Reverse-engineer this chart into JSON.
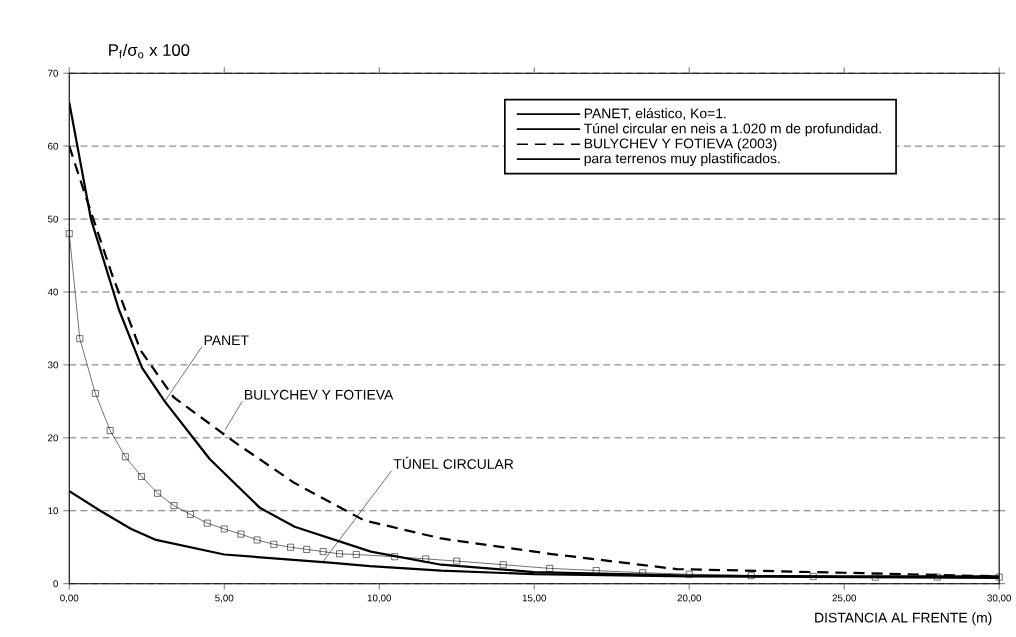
{
  "chart_data": {
    "type": "line",
    "xlabel": "DISTANCIA AL FRENTE (m)",
    "ylabel": "P$_{f}$/σ$_{o}$ x 100",
    "xlim": [
      0,
      30
    ],
    "ylim": [
      0,
      70
    ],
    "xticks": [
      {
        "value": 0,
        "label": "0,00"
      },
      {
        "value": 5,
        "label": "5,00"
      },
      {
        "value": 10,
        "label": "10,00"
      },
      {
        "value": 15,
        "label": "15,00"
      },
      {
        "value": 20,
        "label": "20,00"
      },
      {
        "value": 25,
        "label": "25,00"
      },
      {
        "value": 30,
        "label": "30,00"
      }
    ],
    "yticks": [
      0,
      10,
      20,
      30,
      40,
      50,
      60,
      70
    ],
    "grid": "y",
    "legend": "top right",
    "series": [
      {
        "name": "PANET, elástico, Ko=1.",
        "color": "#000000",
        "line_style": "solid",
        "x": [
          0,
          0.7,
          1.6,
          2.35,
          3.08,
          4.53,
          6.15,
          7.27,
          9.73,
          12,
          15,
          20,
          25,
          30
        ],
        "values": [
          66,
          50,
          37.6,
          29.6,
          25.0,
          17.1,
          10.4,
          7.8,
          4.4,
          2.6,
          1.6,
          1.1,
          1.0,
          1.0
        ]
      },
      {
        "name": "Túnel circular en neis a 1.020 m de profundidad.",
        "color": "#000000",
        "line_style": "solid",
        "x": [
          0,
          1,
          2,
          2.8,
          5,
          8.4,
          9.7,
          12,
          15,
          20,
          30
        ],
        "values": [
          12.7,
          10,
          7.5,
          6.0,
          4.0,
          2.9,
          2.4,
          1.8,
          1.3,
          1.0,
          0.8
        ]
      },
      {
        "name": "BULYCHEV Y FOTIEVA (2003)",
        "color": "#000000",
        "line_style": "dashed",
        "x": [
          0,
          0.54,
          1.37,
          2.3,
          3.36,
          5.37,
          7.27,
          9.5,
          12,
          15.5,
          19.6,
          25,
          30
        ],
        "values": [
          60,
          53,
          42.5,
          32,
          25.6,
          19.3,
          13.8,
          8.7,
          6.2,
          4.1,
          2.0,
          1.5,
          1.0
        ]
      },
      {
        "name": "para terrenos muy plastificados.",
        "color": "#000000",
        "line_style": "solid",
        "marker": "square",
        "x": [
          0,
          0.34,
          0.84,
          1.32,
          1.81,
          2.33,
          2.85,
          3.38,
          3.91,
          4.45,
          5.0,
          5.54,
          6.06,
          6.6,
          7.14,
          7.66,
          8.19,
          8.72,
          9.26,
          10.5,
          11.5,
          12.5,
          14,
          15.5,
          17,
          18.5,
          20,
          22,
          24,
          26,
          28,
          30
        ],
        "values": [
          48,
          33.6,
          26.1,
          21.0,
          17.4,
          14.7,
          12.4,
          10.7,
          9.5,
          8.3,
          7.5,
          6.8,
          6.0,
          5.4,
          5.0,
          4.7,
          4.4,
          4.1,
          4.0,
          3.7,
          3.4,
          3.1,
          2.6,
          2.1,
          1.8,
          1.5,
          1.3,
          1.1,
          1.0,
          0.9,
          0.9,
          0.9
        ]
      }
    ],
    "annotations": [
      {
        "text": "PANET",
        "x": 3.08,
        "y": 25.0
      },
      {
        "text": "BULYCHEV Y FOTIEVA",
        "x": 5.03,
        "y": 21.1
      },
      {
        "text": "TÚNEL CIRCULAR",
        "x": 8.2,
        "y": 3.1
      }
    ]
  }
}
